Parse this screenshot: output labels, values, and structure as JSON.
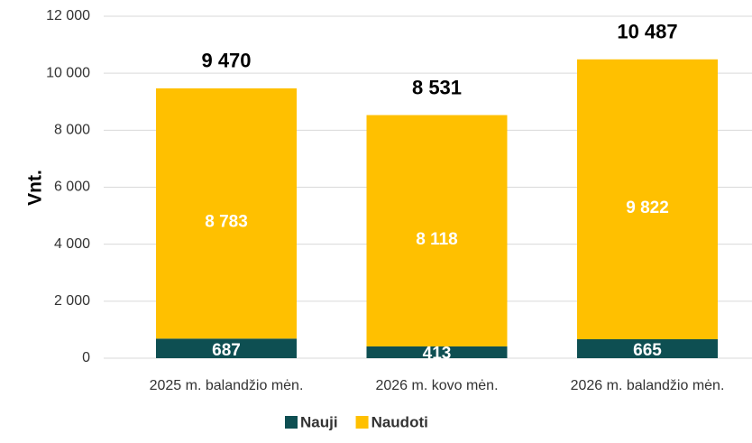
{
  "chart_data": {
    "type": "stacked_bar",
    "y_label": "Vnt.",
    "categories": [
      "2025 m. balandžio mėn.",
      "2026 m. kovo mėn.",
      "2026 m. balandžio mėn."
    ],
    "series": [
      {
        "name": "Nauji",
        "color": "#0e4f52",
        "values": [
          687,
          413,
          665
        ],
        "value_labels": [
          "687",
          "413",
          "665"
        ]
      },
      {
        "name": "Naudoti",
        "color": "#ffc000",
        "values": [
          8783,
          8118,
          9822
        ],
        "value_labels": [
          "8 783",
          "8 118",
          "9 822"
        ]
      }
    ],
    "total_labels": [
      "9 470",
      "8 531",
      "10 487"
    ],
    "ylim": [
      0,
      12000
    ],
    "yticks": [
      0,
      {
        "value": 2000,
        "label": "2 000"
      },
      {
        "value": 4000,
        "label": "4 000"
      },
      {
        "value": 6000,
        "label": "6 000"
      },
      {
        "value": 8000,
        "label": "8 000"
      },
      {
        "value": 10000,
        "label": "10 000"
      },
      {
        "value": 12000,
        "label": "12 000"
      }
    ],
    "grid": true,
    "legend": "bottom"
  }
}
